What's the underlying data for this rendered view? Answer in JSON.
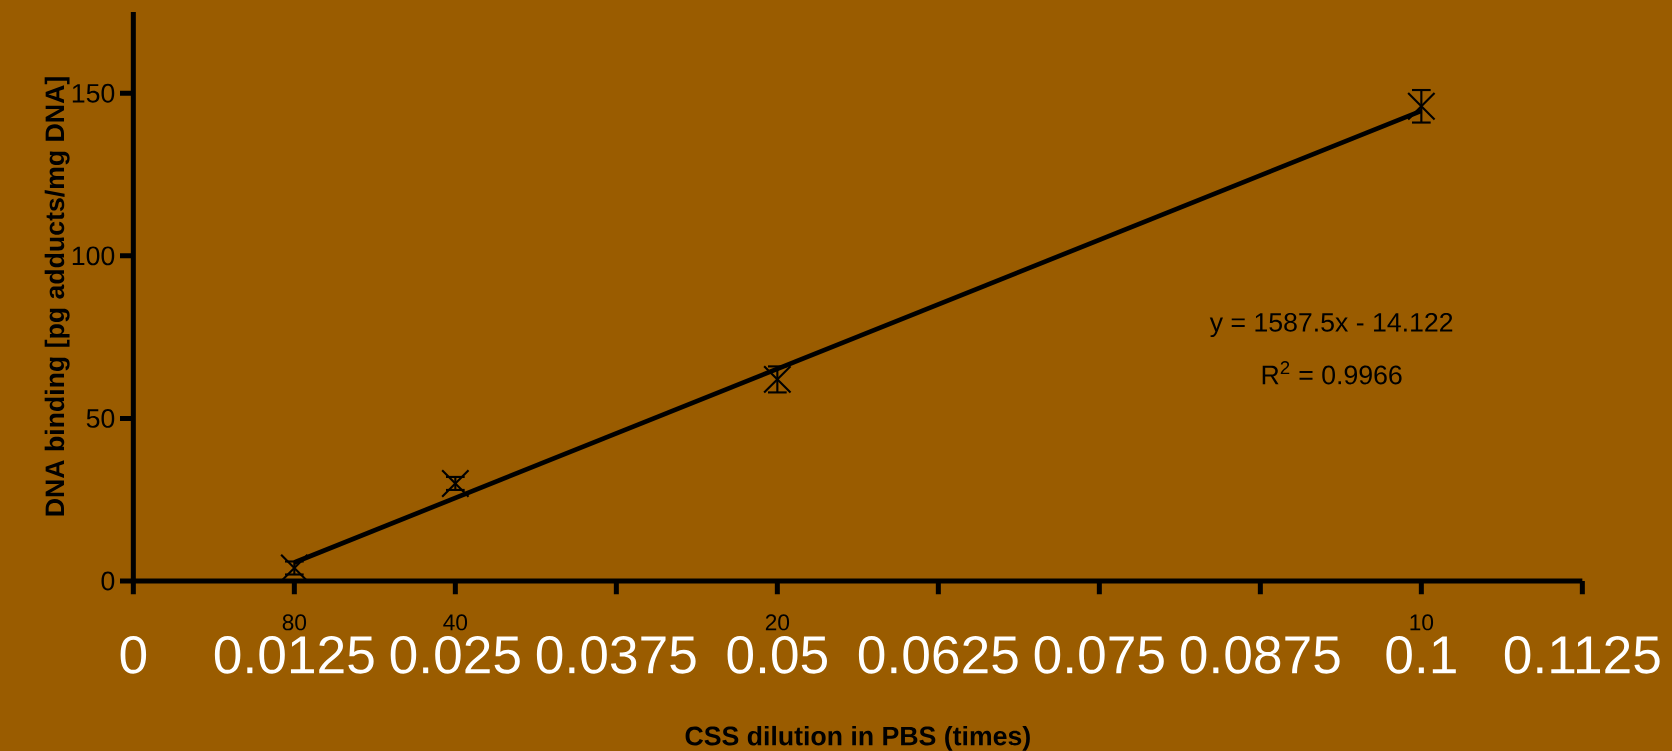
{
  "chart_data": {
    "type": "scatter",
    "xlabel": "CSS dilution in PBS (times)",
    "ylabel": "DNA binding [pg adducts/mg DNA]",
    "xlim": [
      0,
      0.1125
    ],
    "ylim": [
      0,
      175
    ],
    "xticks": [
      0,
      0.0125,
      0.025,
      0.0375,
      0.05,
      0.0625,
      0.075,
      0.0875,
      0.1,
      0.1125
    ],
    "yticks": [
      0,
      50,
      100,
      150
    ],
    "series": [
      {
        "color": "#000000",
        "marker": "cross",
        "x": [
          0.0125,
          0.025,
          0.05,
          0.1
        ],
        "values": [
          4,
          30,
          62,
          146
        ],
        "errors": [
          2,
          2,
          4,
          5
        ]
      },
      {
        "type": "line",
        "color": "#000000",
        "marker": "none",
        "line_style": "solid",
        "x": [
          0.0125,
          0.1
        ],
        "values": [
          5.7,
          144.6
        ]
      }
    ],
    "annotations": [
      "80",
      "40",
      "20",
      "10",
      "y = 1587.5x - 14.122",
      "R$^{2}$ = 0.9966"
    ]
  }
}
